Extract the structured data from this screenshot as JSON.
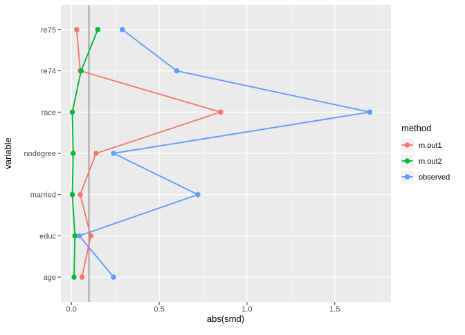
{
  "figure": {
    "background": "#FFFFFF"
  },
  "colors": {
    "panel_bg": "#EBEBEB",
    "grid": "#FFFFFF",
    "reference_line": "#808080",
    "tick_mark": "#333333",
    "tick_text": "#4D4D4D",
    "axis_text": "#000000",
    "legend_key_bg": "#F2F2F2"
  },
  "chart_data": {
    "type": "line",
    "subtype": "love-plot (dot + line, horizontal categories)",
    "title": "",
    "xlabel": "abs(smd)",
    "ylabel": "variable",
    "categories_top_to_bottom": [
      "re75",
      "re74",
      "race",
      "nodegree",
      "married",
      "educ",
      "age"
    ],
    "x_ticks": [
      0.0,
      0.5,
      1.0,
      1.5
    ],
    "x_tick_labels": [
      "0.0",
      "0.5",
      "1.0",
      "1.5"
    ],
    "x_minor_ticks": [
      0.25,
      0.75,
      1.25,
      1.75
    ],
    "xlim": [
      -0.06,
      1.82
    ],
    "reference_line_x": 0.1,
    "grid": true,
    "legend": {
      "title": "method",
      "position": "right",
      "entries": [
        "m.out1",
        "m.out2",
        "observed"
      ]
    },
    "series": [
      {
        "name": "m.out1",
        "color": "#F8766D",
        "values": [
          0.03,
          0.05,
          0.85,
          0.14,
          0.05,
          0.11,
          0.06
        ]
      },
      {
        "name": "m.out2",
        "color": "#00BA38",
        "values": [
          0.15,
          0.055,
          0.005,
          0.01,
          0.005,
          0.02,
          0.015
        ]
      },
      {
        "name": "observed",
        "color": "#619CFF",
        "values": [
          0.29,
          0.6,
          1.7,
          0.24,
          0.72,
          0.045,
          0.24
        ]
      }
    ]
  }
}
